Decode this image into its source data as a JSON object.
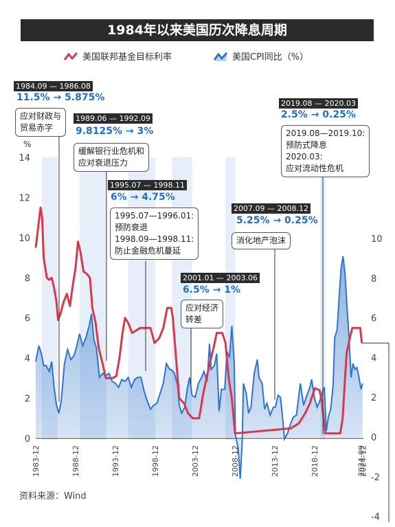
{
  "title": "1984年以来美国历次降息周期",
  "source": "资料来源：Wind",
  "colors": {
    "red": "#d9374b",
    "blue": "#2f74c8",
    "band": "#e6eefa",
    "dark": "#2b2b2b"
  },
  "chart_data": {
    "type": "line",
    "title": "1984年以来美国历次降息周期",
    "left_axis": {
      "label": "%",
      "ticks": [
        0,
        2,
        4,
        6,
        8,
        10,
        12,
        14
      ],
      "range": [
        0,
        14
      ]
    },
    "right_axis": {
      "ticks": [
        -4,
        -2,
        0,
        2,
        4,
        6,
        8,
        10
      ],
      "range": [
        -4,
        10
      ]
    },
    "x_ticks": [
      "1983-12",
      "1988-12",
      "1993-12",
      "1998-12",
      "2003-12",
      "2008-12",
      "2013-12",
      "2018-12",
      "2024-09",
      "2024-12"
    ],
    "x_range": [
      1983.9,
      2025.0
    ],
    "bands": [
      [
        1984.67,
        1986.67
      ],
      [
        1989.42,
        1992.75
      ],
      [
        1995.5,
        1998.92
      ],
      [
        2001.0,
        2003.5
      ],
      [
        2007.67,
        2008.92
      ],
      [
        2019.58,
        2020.25
      ]
    ],
    "series": [
      {
        "name": "美国联邦基金目标利率",
        "color": "#d9374b",
        "axis": "left",
        "points": [
          [
            1983.9,
            9.5
          ],
          [
            1984.2,
            10.5
          ],
          [
            1984.5,
            11.5
          ],
          [
            1984.7,
            11.0
          ],
          [
            1984.9,
            9.0
          ],
          [
            1985.1,
            8.5
          ],
          [
            1985.3,
            8.0
          ],
          [
            1985.6,
            7.9
          ],
          [
            1985.9,
            8.0
          ],
          [
            1986.2,
            7.5
          ],
          [
            1986.5,
            6.8
          ],
          [
            1986.7,
            5.9
          ],
          [
            1987.0,
            6.2
          ],
          [
            1987.4,
            6.8
          ],
          [
            1987.8,
            7.2
          ],
          [
            1988.2,
            6.6
          ],
          [
            1988.5,
            7.5
          ],
          [
            1988.9,
            8.5
          ],
          [
            1989.2,
            9.8
          ],
          [
            1989.5,
            9.3
          ],
          [
            1989.9,
            8.3
          ],
          [
            1990.3,
            8.2
          ],
          [
            1990.7,
            8.0
          ],
          [
            1991.0,
            6.5
          ],
          [
            1991.4,
            5.8
          ],
          [
            1991.8,
            4.5
          ],
          [
            1992.3,
            3.7
          ],
          [
            1992.7,
            3.0
          ],
          [
            1993.5,
            3.0
          ],
          [
            1994.0,
            3.1
          ],
          [
            1994.4,
            4.0
          ],
          [
            1994.8,
            5.3
          ],
          [
            1995.1,
            6.0
          ],
          [
            1995.5,
            5.75
          ],
          [
            1996.0,
            5.25
          ],
          [
            1997.0,
            5.5
          ],
          [
            1998.3,
            5.5
          ],
          [
            1998.8,
            4.75
          ],
          [
            1999.4,
            5.0
          ],
          [
            1999.9,
            5.5
          ],
          [
            2000.4,
            6.5
          ],
          [
            2000.9,
            6.5
          ],
          [
            2001.1,
            6.0
          ],
          [
            2001.5,
            4.0
          ],
          [
            2001.9,
            2.0
          ],
          [
            2002.5,
            1.75
          ],
          [
            2003.0,
            1.25
          ],
          [
            2003.6,
            1.0
          ],
          [
            2004.4,
            1.0
          ],
          [
            2004.9,
            2.2
          ],
          [
            2005.6,
            3.5
          ],
          [
            2006.2,
            4.5
          ],
          [
            2006.6,
            5.25
          ],
          [
            2007.3,
            5.25
          ],
          [
            2007.7,
            4.75
          ],
          [
            2008.1,
            3.0
          ],
          [
            2008.5,
            2.0
          ],
          [
            2008.9,
            0.25
          ],
          [
            2015.9,
            0.5
          ],
          [
            2016.9,
            0.75
          ],
          [
            2017.7,
            1.25
          ],
          [
            2018.3,
            1.75
          ],
          [
            2018.9,
            2.5
          ],
          [
            2019.5,
            2.4
          ],
          [
            2019.8,
            1.8
          ],
          [
            2020.2,
            0.25
          ],
          [
            2022.1,
            0.25
          ],
          [
            2022.4,
            1.0
          ],
          [
            2022.7,
            3.0
          ],
          [
            2022.9,
            4.25
          ],
          [
            2023.3,
            5.0
          ],
          [
            2023.6,
            5.5
          ],
          [
            2024.6,
            5.5
          ],
          [
            2024.8,
            4.75
          ]
        ]
      },
      {
        "name": "美国CPI同比（%）",
        "color": "#2f74c8",
        "axis": "right",
        "points": [
          [
            1983.9,
            3.8
          ],
          [
            1984.3,
            4.6
          ],
          [
            1984.6,
            4.2
          ],
          [
            1984.9,
            3.6
          ],
          [
            1985.2,
            3.6
          ],
          [
            1985.6,
            3.3
          ],
          [
            1985.9,
            3.8
          ],
          [
            1986.2,
            2.5
          ],
          [
            1986.5,
            1.6
          ],
          [
            1986.8,
            1.2
          ],
          [
            1987.1,
            1.8
          ],
          [
            1987.5,
            3.7
          ],
          [
            1987.9,
            4.4
          ],
          [
            1988.3,
            3.9
          ],
          [
            1988.7,
            4.1
          ],
          [
            1989.0,
            4.5
          ],
          [
            1989.4,
            5.2
          ],
          [
            1989.8,
            4.6
          ],
          [
            1990.2,
            5.0
          ],
          [
            1990.6,
            5.6
          ],
          [
            1990.9,
            6.2
          ],
          [
            1991.2,
            4.9
          ],
          [
            1991.5,
            4.5
          ],
          [
            1991.9,
            3.0
          ],
          [
            1992.3,
            3.2
          ],
          [
            1992.7,
            3.1
          ],
          [
            1993.1,
            3.2
          ],
          [
            1993.5,
            2.8
          ],
          [
            1993.9,
            2.7
          ],
          [
            1994.3,
            2.5
          ],
          [
            1994.7,
            2.9
          ],
          [
            1995.1,
            2.8
          ],
          [
            1995.5,
            3.0
          ],
          [
            1995.9,
            2.5
          ],
          [
            1996.3,
            2.9
          ],
          [
            1996.7,
            3.0
          ],
          [
            1997.1,
            3.0
          ],
          [
            1997.5,
            2.3
          ],
          [
            1997.9,
            1.8
          ],
          [
            1998.3,
            1.4
          ],
          [
            1998.7,
            1.6
          ],
          [
            1999.1,
            1.7
          ],
          [
            1999.5,
            2.2
          ],
          [
            1999.9,
            2.7
          ],
          [
            2000.3,
            3.7
          ],
          [
            2000.7,
            3.4
          ],
          [
            2000.9,
            3.4
          ],
          [
            2001.3,
            3.2
          ],
          [
            2001.7,
            2.6
          ],
          [
            2001.9,
            1.6
          ],
          [
            2002.2,
            1.2
          ],
          [
            2002.6,
            1.5
          ],
          [
            2002.9,
            2.4
          ],
          [
            2003.2,
            3.0
          ],
          [
            2003.5,
            2.1
          ],
          [
            2003.9,
            2.0
          ],
          [
            2004.3,
            2.7
          ],
          [
            2004.7,
            3.0
          ],
          [
            2005.0,
            3.3
          ],
          [
            2005.4,
            2.8
          ],
          [
            2005.7,
            4.7
          ],
          [
            2005.9,
            3.4
          ],
          [
            2006.3,
            3.6
          ],
          [
            2006.6,
            4.2
          ],
          [
            2006.9,
            1.3
          ],
          [
            2007.2,
            2.4
          ],
          [
            2007.6,
            2.4
          ],
          [
            2007.9,
            4.3
          ],
          [
            2008.2,
            4.0
          ],
          [
            2008.5,
            5.6
          ],
          [
            2008.8,
            3.7
          ],
          [
            2008.95,
            0.1
          ],
          [
            2009.3,
            -0.6
          ],
          [
            2009.55,
            -2.1
          ],
          [
            2009.8,
            -0.2
          ],
          [
            2009.95,
            2.7
          ],
          [
            2010.3,
            2.2
          ],
          [
            2010.6,
            1.2
          ],
          [
            2010.9,
            1.5
          ],
          [
            2011.3,
            3.2
          ],
          [
            2011.7,
            3.9
          ],
          [
            2011.9,
            3.0
          ],
          [
            2012.3,
            2.7
          ],
          [
            2012.6,
            1.4
          ],
          [
            2012.9,
            1.7
          ],
          [
            2013.3,
            1.1
          ],
          [
            2013.7,
            1.5
          ],
          [
            2013.95,
            1.5
          ],
          [
            2014.3,
            2.1
          ],
          [
            2014.6,
            2.0
          ],
          [
            2014.9,
            0.8
          ],
          [
            2015.1,
            -0.1
          ],
          [
            2015.5,
            0.2
          ],
          [
            2015.9,
            0.7
          ],
          [
            2016.2,
            1.0
          ],
          [
            2016.6,
            1.1
          ],
          [
            2016.9,
            2.1
          ],
          [
            2017.1,
            2.7
          ],
          [
            2017.5,
            1.6
          ],
          [
            2017.9,
            2.1
          ],
          [
            2018.3,
            2.5
          ],
          [
            2018.5,
            2.9
          ],
          [
            2018.9,
            1.9
          ],
          [
            2019.2,
            1.5
          ],
          [
            2019.5,
            1.8
          ],
          [
            2019.9,
            2.3
          ],
          [
            2020.1,
            2.5
          ],
          [
            2020.35,
            0.3
          ],
          [
            2020.6,
            1.0
          ],
          [
            2020.9,
            1.4
          ],
          [
            2021.2,
            2.6
          ],
          [
            2021.4,
            5.0
          ],
          [
            2021.7,
            5.4
          ],
          [
            2021.95,
            7.0
          ],
          [
            2022.2,
            8.5
          ],
          [
            2022.45,
            9.1
          ],
          [
            2022.7,
            8.2
          ],
          [
            2022.95,
            6.5
          ],
          [
            2023.2,
            5.0
          ],
          [
            2023.45,
            3.0
          ],
          [
            2023.7,
            3.7
          ],
          [
            2023.95,
            3.4
          ],
          [
            2024.2,
            3.5
          ],
          [
            2024.45,
            3.0
          ],
          [
            2024.7,
            2.4
          ],
          [
            2024.9,
            2.7
          ]
        ]
      }
    ]
  },
  "legend": {
    "red_label": "美国联邦基金目标利率",
    "blue_label": "美国CPI同比（%）"
  },
  "annotations": [
    {
      "period": "1984.09 — 1986.08",
      "rate": "11.5% → 5.875%",
      "note": [
        "应对财政与",
        "贸易赤字"
      ]
    },
    {
      "period": "1989.06 — 1992.09",
      "rate": "9.8125% → 3%",
      "note": [
        "缓解银行业危机和",
        "应对衰退压力"
      ]
    },
    {
      "period": "1995.07 — 1998.11",
      "rate": "6% → 4.75%",
      "note": [
        "1995.07—1996.01:",
        "预防衰退",
        "1998.09—1998.11:",
        "防止金融危机蔓延"
      ]
    },
    {
      "period": "2001.01 — 2003.06",
      "rate": "6.5% → 1%",
      "note": [
        "应对经济",
        "转差"
      ]
    },
    {
      "period": "2007.09 — 2008.12",
      "rate": "5.25% → 0.25%",
      "note": [
        "消化地产泡沫"
      ]
    },
    {
      "period": "2019.08 — 2020.03",
      "rate": "2.5% → 0.25%",
      "note": [
        "2019.08—2019.10:",
        "预防式降息",
        "2020.03:",
        "应对流动性危机"
      ]
    }
  ]
}
